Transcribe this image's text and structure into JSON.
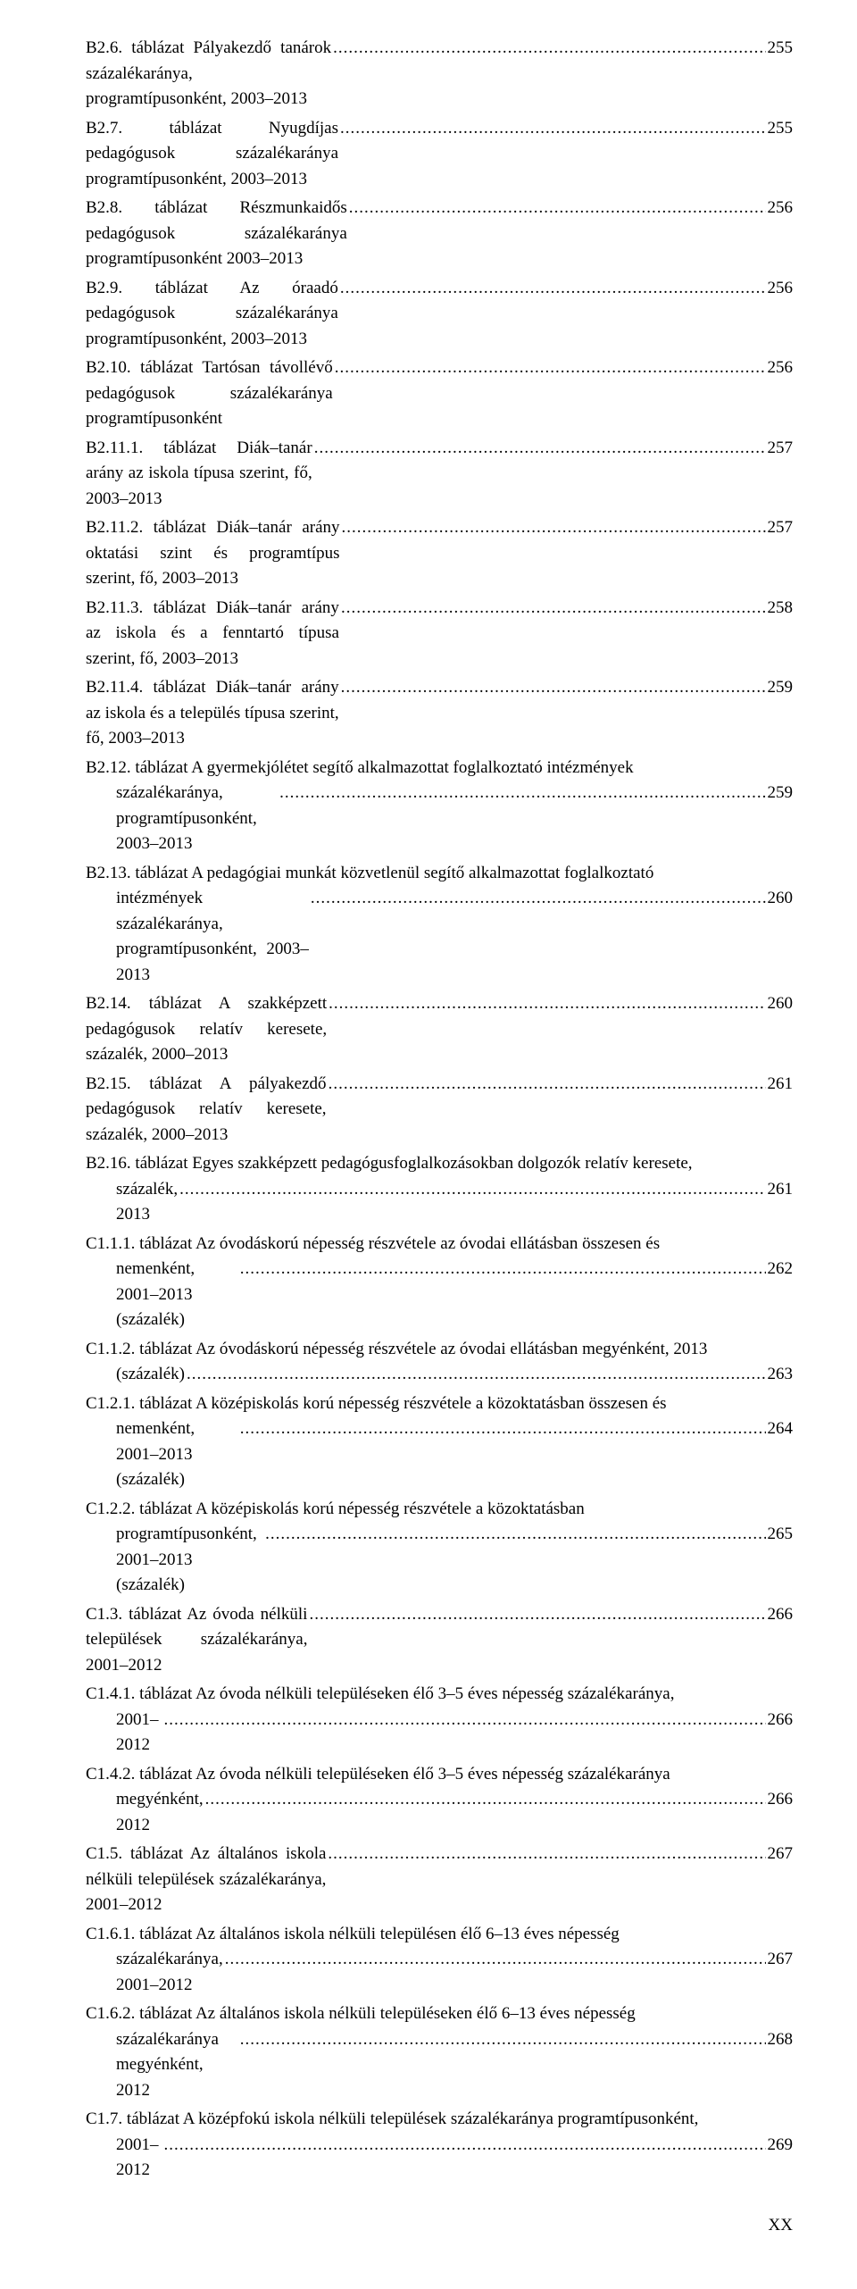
{
  "entries": [
    {
      "id": "b2-6",
      "label_a": "B2.6. táblázat Pályakezdő tanárok százalékaránya, programtípusonként, 2003–2013",
      "page": "255"
    },
    {
      "id": "b2-7",
      "label_a": "B2.7. táblázat Nyugdíjas pedagógusok százalékaránya programtípusonként, 2003–2013",
      "page": "255"
    },
    {
      "id": "b2-8",
      "label_a": "B2.8. táblázat Részmunkaidős pedagógusok százalékaránya programtípusonként 2003–2013",
      "page": "256"
    },
    {
      "id": "b2-9",
      "label_a": "B2.9. táblázat Az óraadó pedagógusok százalékaránya programtípusonként, 2003–2013",
      "page": "256"
    },
    {
      "id": "b2-10",
      "label_a": "B2.10. táblázat Tartósan távollévő pedagógusok százalékaránya programtípusonként",
      "page": "256"
    },
    {
      "id": "b2-11-1",
      "label_a": "B2.11.1. táblázat Diák–tanár arány az iskola típusa szerint, fő, 2003–2013",
      "page": "257"
    },
    {
      "id": "b2-11-2",
      "label_a": "B2.11.2. táblázat Diák–tanár arány oktatási szint és programtípus szerint, fő, 2003–2013",
      "page": "257"
    },
    {
      "id": "b2-11-3",
      "label_a": "B2.11.3. táblázat Diák–tanár arány az iskola és a fenntartó típusa szerint, fő, 2003–2013",
      "page": "258"
    },
    {
      "id": "b2-11-4",
      "label_a": "B2.11.4. táblázat Diák–tanár arány az iskola és a település típusa szerint, fő, 2003–2013",
      "page": "259"
    },
    {
      "id": "b2-12",
      "multi": true,
      "label_a": "B2.12. táblázat A gyermekjólétet segítő alkalmazottat foglalkoztató intézmények",
      "label_b": "százalékaránya, programtípusonként, 2003–2013",
      "page": "259"
    },
    {
      "id": "b2-13",
      "multi": true,
      "label_a": "B2.13. táblázat A pedagógiai munkát közvetlenül segítő alkalmazottat foglalkoztató",
      "label_b": "intézmények százalékaránya, programtípusonként, 2003–2013",
      "page": "260"
    },
    {
      "id": "b2-14",
      "label_a": "B2.14. táblázat A szakképzett pedagógusok relatív keresete, százalék, 2000–2013",
      "page": "260"
    },
    {
      "id": "b2-15",
      "label_a": "B2.15. táblázat A pályakezdő pedagógusok relatív keresete, százalék, 2000–2013",
      "page": "261"
    },
    {
      "id": "b2-16",
      "multi": true,
      "label_a": "B2.16. táblázat Egyes szakképzett pedagógusfoglalkozásokban dolgozók relatív keresete,",
      "label_b": "százalék, 2013",
      "page": "261"
    },
    {
      "id": "c1-1-1",
      "multi": true,
      "label_a": "C1.1.1. táblázat Az óvodáskorú népesség részvétele az óvodai ellátásban összesen és",
      "label_b": "nemenként, 2001–2013 (százalék)",
      "page": "262"
    },
    {
      "id": "c1-1-2",
      "multi": true,
      "label_a": "C1.1.2. táblázat Az óvodáskorú népesség részvétele az óvodai ellátásban megyénként, 2013",
      "label_b": "(százalék)",
      "page": "263"
    },
    {
      "id": "c1-2-1",
      "multi": true,
      "label_a": "C1.2.1. táblázat A középiskolás korú népesség részvétele a közoktatásban összesen és",
      "label_b": "nemenként, 2001–2013 (százalék)",
      "page": "264"
    },
    {
      "id": "c1-2-2",
      "multi": true,
      "label_a": "C1.2.2. táblázat A középiskolás korú népesség részvétele a közoktatásban",
      "label_b": "programtípusonként, 2001–2013 (százalék)",
      "page": "265"
    },
    {
      "id": "c1-3",
      "label_a": "C1.3. táblázat Az óvoda nélküli települések százalékaránya, 2001–2012",
      "page": "266"
    },
    {
      "id": "c1-4-1",
      "multi": true,
      "label_a": "C1.4.1. táblázat Az óvoda nélküli településeken élő 3–5 éves népesség százalékaránya,",
      "label_b": "2001–2012",
      "page": "266"
    },
    {
      "id": "c1-4-2",
      "multi": true,
      "label_a": "C1.4.2. táblázat Az óvoda nélküli településeken élő 3–5 éves népesség százalékaránya",
      "label_b": "megyénként, 2012",
      "page": "266"
    },
    {
      "id": "c1-5",
      "label_a": "C1.5. táblázat Az általános iskola nélküli települések százalékaránya, 2001–2012",
      "page": "267"
    },
    {
      "id": "c1-6-1",
      "multi": true,
      "label_a": "C1.6.1. táblázat Az általános iskola nélküli településen élő 6–13 éves népesség",
      "label_b": "százalékaránya, 2001–2012",
      "page": "267"
    },
    {
      "id": "c1-6-2",
      "multi": true,
      "label_a": "C1.6.2. táblázat Az általános iskola nélküli településeken élő 6–13 éves népesség",
      "label_b": "százalékaránya megyénként, 2012",
      "page": "268"
    },
    {
      "id": "c1-7",
      "multi": true,
      "label_a": "C1.7. táblázat A középfokú iskola nélküli települések százalékaránya programtípusonként,",
      "label_b": "2001–2012",
      "page": "269"
    }
  ],
  "page_number": "XX"
}
